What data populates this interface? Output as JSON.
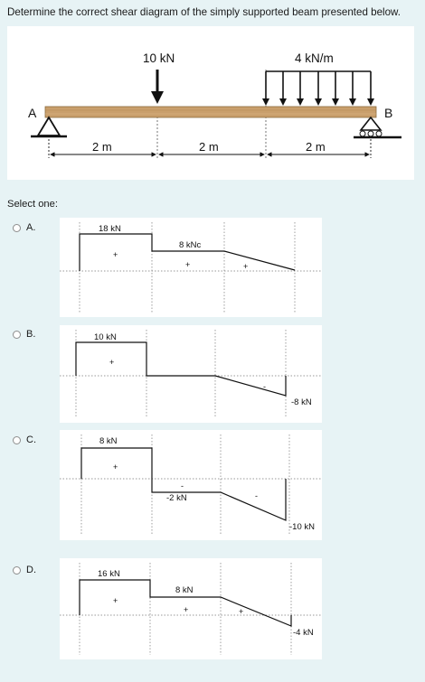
{
  "question": "Determine the correct shear diagram of the simply supported beam presented below.",
  "beam": {
    "point_load": "10 kN",
    "dist_load": "4 kN/m",
    "support_a": "A",
    "support_b": "B",
    "spans": [
      "2 m",
      "2 m",
      "2 m"
    ]
  },
  "select_one": "Select one:",
  "options": [
    {
      "letter": "A.",
      "label_1": "18 kN",
      "label_2": "8 kNc",
      "sign_1": "+",
      "sign_2": "+",
      "sign_3": "+"
    },
    {
      "letter": "B.",
      "label_1": "10 kN",
      "label_2": "-8 kN",
      "sign_1": "+",
      "sign_2": "-"
    },
    {
      "letter": "C.",
      "label_1": "8 kN",
      "label_2": "-2 kN",
      "label_3": "-10 kN",
      "sign_1": "+",
      "sign_2": "-",
      "sign_3": "-"
    },
    {
      "letter": "D.",
      "label_1": "16 kN",
      "label_2": "8 kN",
      "label_3": "-4 kN",
      "sign_1": "+",
      "sign_2": "+",
      "sign_3": "+"
    }
  ]
}
